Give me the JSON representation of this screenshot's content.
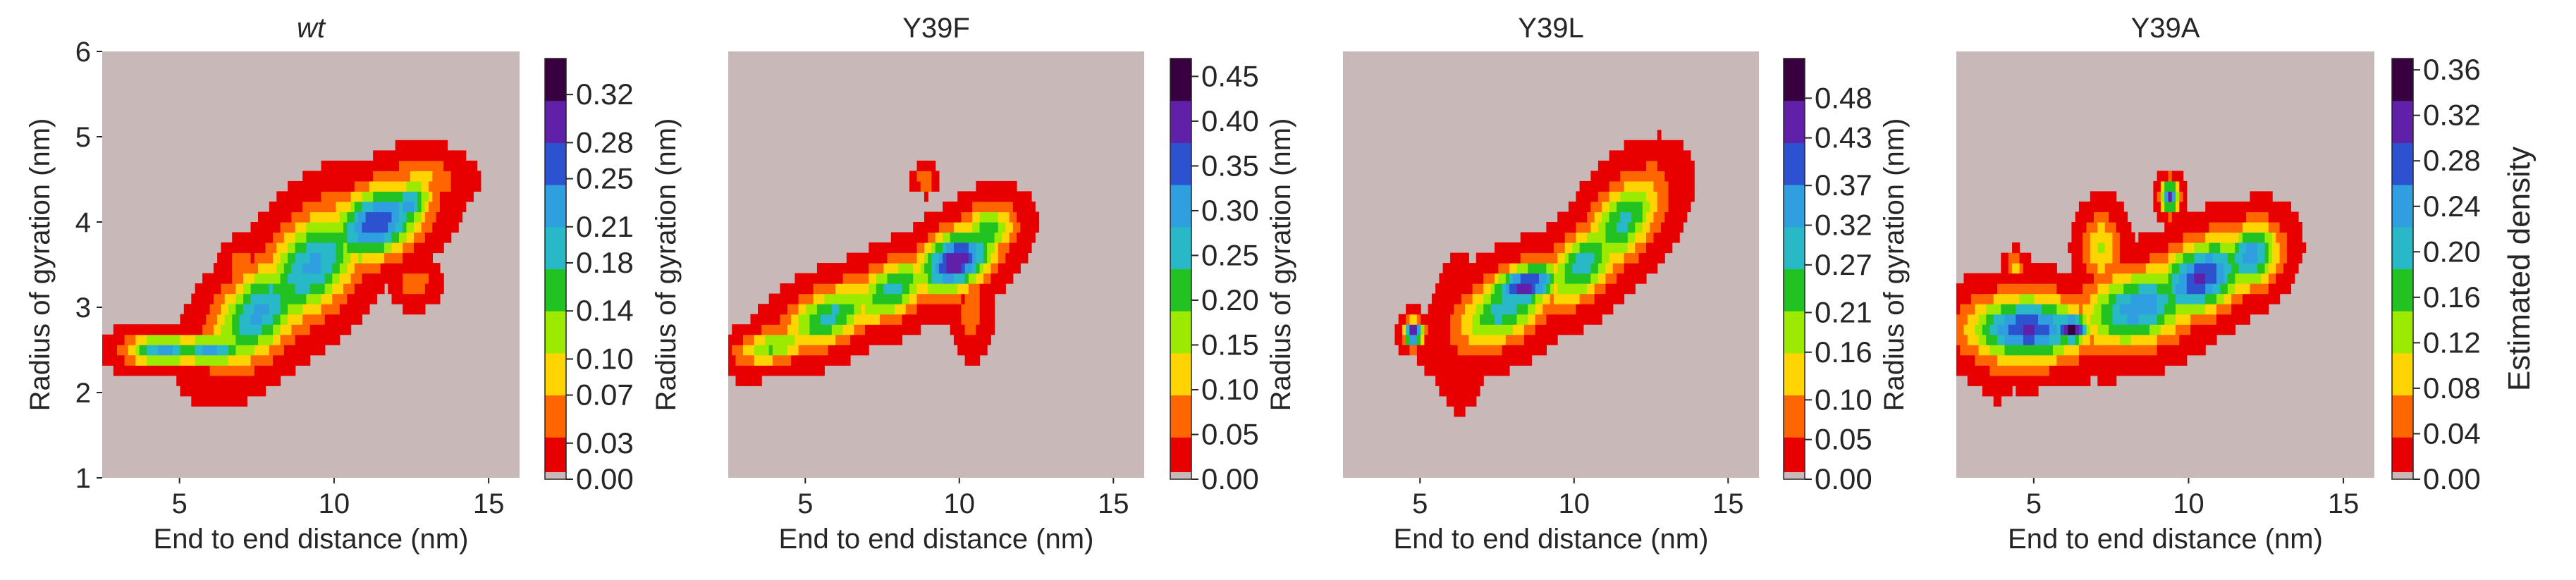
{
  "figure": {
    "colormap": [
      "#c9b8b8",
      "#e80000",
      "#ff6600",
      "#ffd400",
      "#9bea00",
      "#22c222",
      "#28b8c8",
      "#2f9fe0",
      "#2d52d0",
      "#6020a8",
      "#38003e"
    ],
    "colorbar_label": "Estimated density"
  },
  "chart_data": [
    {
      "type": "contour",
      "title": "wt",
      "title_style": "italic",
      "xlabel": "End to end distance (nm)",
      "ylabel": "Radius of gyration (nm)",
      "xlim": [
        2.5,
        16
      ],
      "ylim": [
        1,
        6
      ],
      "xticks": [
        "5",
        "10",
        "15"
      ],
      "yticks": [
        "1",
        "2",
        "3",
        "4",
        "5",
        "6"
      ],
      "colorbar": {
        "ticks": [
          "0.00",
          "0.03",
          "0.07",
          "0.10",
          "0.14",
          "0.18",
          "0.21",
          "0.25",
          "0.28",
          "0.32"
        ],
        "max": 0.35
      },
      "clusters": [
        {
          "x": 4.5,
          "y": 2.5,
          "sx": 0.8,
          "sy": 0.12,
          "rho": 0,
          "a": 0.22
        },
        {
          "x": 6.0,
          "y": 2.5,
          "sx": 0.8,
          "sy": 0.12,
          "rho": 0,
          "a": 0.22
        },
        {
          "x": 7.6,
          "y": 2.95,
          "sx": 1.0,
          "sy": 0.4,
          "rho": 0.5,
          "a": 0.22
        },
        {
          "x": 9.3,
          "y": 3.5,
          "sx": 1.1,
          "sy": 0.45,
          "rho": 0.5,
          "a": 0.22
        },
        {
          "x": 11.4,
          "y": 4.0,
          "sx": 1.0,
          "sy": 0.3,
          "rho": 0.4,
          "a": 0.28
        },
        {
          "x": 12.4,
          "y": 4.2,
          "sx": 0.5,
          "sy": 0.2,
          "rho": 0.3,
          "a": 0.22
        },
        {
          "x": 12.8,
          "y": 4.5,
          "sx": 0.8,
          "sy": 0.18,
          "rho": 0,
          "a": 0.08
        },
        {
          "x": 7.0,
          "y": 3.5,
          "sx": 0.35,
          "sy": 0.15,
          "rho": 0,
          "a": 0.06
        },
        {
          "x": 12.6,
          "y": 3.3,
          "sx": 0.4,
          "sy": 0.15,
          "rho": 0,
          "a": 0.06
        }
      ]
    },
    {
      "type": "contour",
      "title": "Y39F",
      "title_style": "normal",
      "xlabel": "End to end distance (nm)",
      "ylabel": "Radius of gyration (nm)",
      "xlim": [
        2.5,
        16
      ],
      "ylim": [
        1,
        6
      ],
      "xticks": [
        "5",
        "10",
        "15"
      ],
      "yticks": [],
      "colorbar": {
        "ticks": [
          "0.00",
          "0.05",
          "0.10",
          "0.15",
          "0.20",
          "0.25",
          "0.30",
          "0.35",
          "0.40",
          "0.45"
        ],
        "max": 0.47
      },
      "clusters": [
        {
          "x": 4.0,
          "y": 2.55,
          "sx": 0.8,
          "sy": 0.15,
          "rho": 0.4,
          "a": 0.2
        },
        {
          "x": 5.8,
          "y": 2.9,
          "sx": 1.0,
          "sy": 0.25,
          "rho": 0.5,
          "a": 0.25
        },
        {
          "x": 7.8,
          "y": 3.2,
          "sx": 0.9,
          "sy": 0.25,
          "rho": 0.5,
          "a": 0.25
        },
        {
          "x": 9.9,
          "y": 3.55,
          "sx": 0.8,
          "sy": 0.25,
          "rho": 0.4,
          "a": 0.42
        },
        {
          "x": 10.9,
          "y": 3.9,
          "sx": 0.6,
          "sy": 0.2,
          "rho": 0.2,
          "a": 0.22
        },
        {
          "x": 10.4,
          "y": 2.95,
          "sx": 0.3,
          "sy": 0.25,
          "rho": 0,
          "a": 0.08
        },
        {
          "x": 8.9,
          "y": 4.5,
          "sx": 0.2,
          "sy": 0.08,
          "rho": 0,
          "a": 0.1
        }
      ]
    },
    {
      "type": "contour",
      "title": "Y39L",
      "title_style": "normal",
      "xlabel": "End to end distance (nm)",
      "ylabel": "Radius of gyration (nm)",
      "xlim": [
        2.5,
        16
      ],
      "ylim": [
        1,
        6
      ],
      "xticks": [
        "5",
        "10",
        "15"
      ],
      "yticks": [],
      "colorbar": {
        "ticks": [
          "0.00",
          "0.05",
          "0.10",
          "0.16",
          "0.21",
          "0.27",
          "0.32",
          "0.37",
          "0.43",
          "0.48"
        ],
        "max": 0.53
      },
      "clusters": [
        {
          "x": 6.3,
          "y": 2.7,
          "sx": 0.4,
          "sy": 0.4,
          "rho": 0,
          "a": 0.06
        },
        {
          "x": 7.8,
          "y": 3.0,
          "sx": 1.0,
          "sy": 0.3,
          "rho": 0.5,
          "a": 0.3
        },
        {
          "x": 8.4,
          "y": 3.25,
          "sx": 0.8,
          "sy": 0.18,
          "rho": 0.4,
          "a": 0.45
        },
        {
          "x": 10.3,
          "y": 3.5,
          "sx": 0.8,
          "sy": 0.3,
          "rho": 0.5,
          "a": 0.3
        },
        {
          "x": 11.6,
          "y": 4.0,
          "sx": 0.8,
          "sy": 0.35,
          "rho": 0.5,
          "a": 0.28
        },
        {
          "x": 12.5,
          "y": 4.5,
          "sx": 0.5,
          "sy": 0.2,
          "rho": 0,
          "a": 0.08
        },
        {
          "x": 4.8,
          "y": 2.7,
          "sx": 0.2,
          "sy": 0.1,
          "rho": 0,
          "a": 0.5
        }
      ]
    },
    {
      "type": "contour",
      "title": "Y39A",
      "title_style": "normal",
      "xlabel": "End to end distance (nm)",
      "ylabel": "Radius of gyration (nm)",
      "xlim": [
        2.5,
        16
      ],
      "ylim": [
        1,
        6
      ],
      "xticks": [
        "5",
        "10",
        "15"
      ],
      "yticks": [],
      "colorbar": {
        "ticks": [
          "0.00",
          "0.04",
          "0.08",
          "0.12",
          "0.16",
          "0.20",
          "0.24",
          "0.28",
          "0.32",
          "0.36"
        ],
        "max": 0.37
      },
      "clusters": [
        {
          "x": 4.8,
          "y": 2.75,
          "sx": 1.2,
          "sy": 0.25,
          "rho": 0,
          "a": 0.3
        },
        {
          "x": 6.2,
          "y": 2.75,
          "sx": 0.4,
          "sy": 0.12,
          "rho": 0,
          "a": 0.36
        },
        {
          "x": 8.4,
          "y": 3.0,
          "sx": 1.2,
          "sy": 0.3,
          "rho": 0.3,
          "a": 0.25
        },
        {
          "x": 10.4,
          "y": 3.35,
          "sx": 1.0,
          "sy": 0.3,
          "rho": 0.4,
          "a": 0.3
        },
        {
          "x": 12.0,
          "y": 3.6,
          "sx": 0.6,
          "sy": 0.25,
          "rho": 0.2,
          "a": 0.25
        },
        {
          "x": 7.2,
          "y": 3.7,
          "sx": 0.4,
          "sy": 0.25,
          "rho": 0,
          "a": 0.12
        },
        {
          "x": 3.8,
          "y": 2.5,
          "sx": 0.3,
          "sy": 0.25,
          "rho": 0,
          "a": 0.08
        },
        {
          "x": 9.4,
          "y": 4.3,
          "sx": 0.2,
          "sy": 0.12,
          "rho": 0,
          "a": 0.3
        },
        {
          "x": 4.4,
          "y": 3.5,
          "sx": 0.2,
          "sy": 0.08,
          "rho": 0,
          "a": 0.1
        }
      ]
    }
  ]
}
